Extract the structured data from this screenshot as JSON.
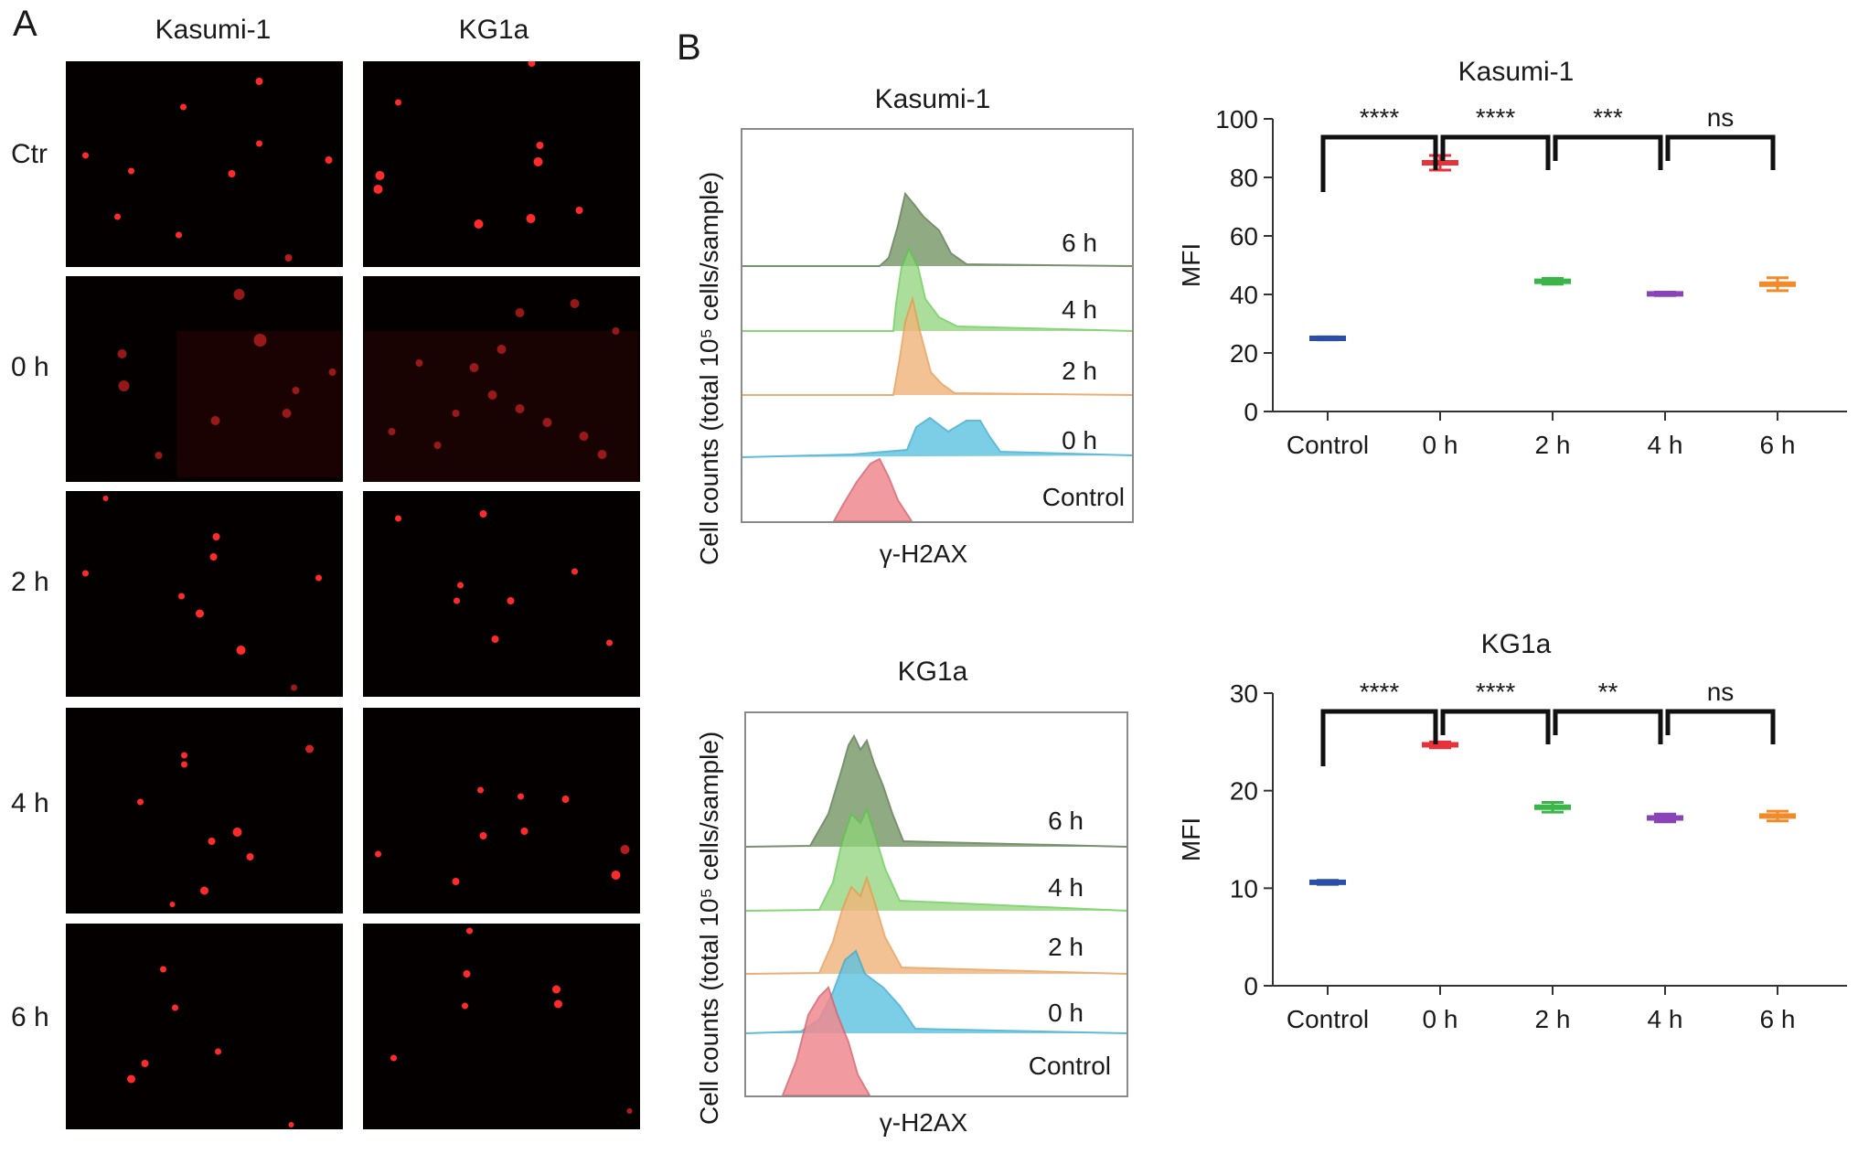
{
  "panel_a": {
    "letter": "A",
    "columns": [
      "Kasumi-1",
      "KG1a"
    ],
    "rows": [
      "Ctr",
      "0 h",
      "2 h",
      "4 h",
      "6 h"
    ]
  },
  "panel_b": {
    "letter": "B",
    "histograms": [
      {
        "title": "Kasumi-1",
        "ylabel": "Cell counts (total 10⁵ cells/sample)",
        "xlabel": "γ-H2AX",
        "tracks": [
          "6 h",
          "4 h",
          "2 h",
          "0 h",
          "Control"
        ],
        "colors": [
          "#6b8f5a",
          "#8fd47a",
          "#f1b47a",
          "#5cc2e0",
          "#ef8a90"
        ]
      },
      {
        "title": "KG1a",
        "ylabel": "Cell counts (total 10⁵ cells/sample)",
        "xlabel": "γ-H2AX",
        "tracks": [
          "6 h",
          "4 h",
          "2 h",
          "0 h",
          "Control"
        ],
        "colors": [
          "#6b8f5a",
          "#8fd47a",
          "#f1b47a",
          "#5cc2e0",
          "#ef8a90"
        ]
      }
    ]
  },
  "chart_data": [
    {
      "type": "scatter",
      "title": "Kasumi-1",
      "ylabel": "MFI",
      "xlabel": "",
      "categories": [
        "Control",
        "0 h",
        "2 h",
        "4 h",
        "6 h"
      ],
      "values": [
        25,
        85,
        44.5,
        40.2,
        43.5
      ],
      "errors": [
        0.5,
        2.5,
        1.0,
        0.6,
        2.2
      ],
      "colors": [
        "#2b4fa8",
        "#e8323a",
        "#3bb54a",
        "#8a44b8",
        "#f08a2a"
      ],
      "ylim": [
        0,
        100
      ],
      "yticks": [
        0,
        20,
        40,
        60,
        80,
        100
      ],
      "significance": [
        {
          "from": 0,
          "to": 1,
          "label": "****"
        },
        {
          "from": 1,
          "to": 2,
          "label": "****"
        },
        {
          "from": 2,
          "to": 3,
          "label": "***"
        },
        {
          "from": 3,
          "to": 4,
          "label": "ns"
        }
      ]
    },
    {
      "type": "scatter",
      "title": "KG1a",
      "ylabel": "MFI",
      "xlabel": "",
      "categories": [
        "Control",
        "0 h",
        "2 h",
        "4 h",
        "6 h"
      ],
      "values": [
        10.6,
        24.7,
        18.3,
        17.2,
        17.4
      ],
      "errors": [
        0.2,
        0.3,
        0.5,
        0.4,
        0.5
      ],
      "colors": [
        "#2b4fa8",
        "#e8323a",
        "#3bb54a",
        "#8a44b8",
        "#f08a2a"
      ],
      "ylim": [
        0,
        30
      ],
      "yticks": [
        0,
        10,
        20,
        30
      ],
      "significance": [
        {
          "from": 0,
          "to": 1,
          "label": "****"
        },
        {
          "from": 1,
          "to": 2,
          "label": "****"
        },
        {
          "from": 2,
          "to": 3,
          "label": "**"
        },
        {
          "from": 3,
          "to": 4,
          "label": "ns"
        }
      ]
    }
  ]
}
